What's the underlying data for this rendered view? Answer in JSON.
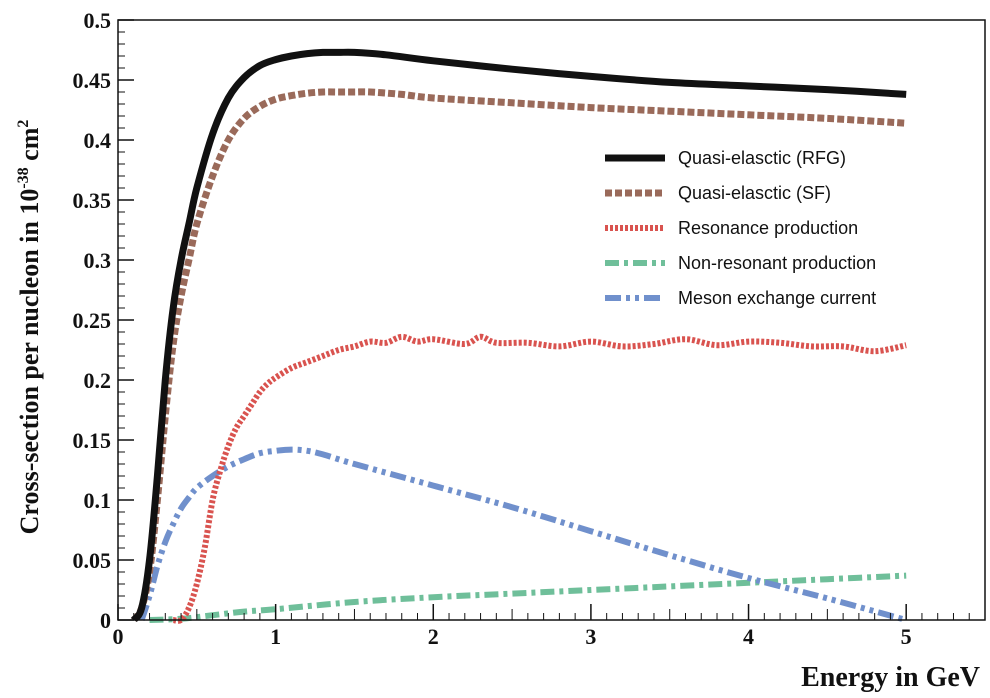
{
  "chart_data": {
    "type": "line",
    "xlabel": "Energy in GeV",
    "ylabel": "Cross-section per nucleon in 10",
    "ylabel_sup": "-38",
    "ylabel_unit": " cm",
    "ylabel_unit_sup": "2",
    "xlim": [
      0,
      5.5
    ],
    "ylim": [
      0,
      0.5
    ],
    "x_ticks": [
      0,
      1,
      2,
      3,
      4,
      5
    ],
    "y_ticks": [
      0,
      0.05,
      0.1,
      0.15,
      0.2,
      0.25,
      0.3,
      0.35,
      0.4,
      0.45,
      0.5
    ],
    "x_tick_labels": [
      "0",
      "1",
      "2",
      "3",
      "4",
      "5"
    ],
    "y_tick_labels": [
      "0",
      "0.05",
      "0.1",
      "0.15",
      "0.2",
      "0.25",
      "0.3",
      "0.35",
      "0.4",
      "0.45",
      "0.5"
    ],
    "grid": false,
    "legend_position": "right",
    "series": [
      {
        "name": "Quasi-elasctic (RFG)",
        "color": "#111111",
        "style": "solid",
        "x": [
          0.1,
          0.15,
          0.2,
          0.25,
          0.3,
          0.35,
          0.4,
          0.45,
          0.5,
          0.6,
          0.7,
          0.8,
          0.9,
          1.0,
          1.1,
          1.2,
          1.3,
          1.4,
          1.5,
          1.7,
          2.0,
          2.5,
          3.0,
          3.5,
          4.0,
          4.5,
          5.0
        ],
        "y": [
          0.0,
          0.01,
          0.05,
          0.12,
          0.2,
          0.26,
          0.3,
          0.33,
          0.36,
          0.405,
          0.435,
          0.452,
          0.462,
          0.467,
          0.47,
          0.472,
          0.473,
          0.473,
          0.473,
          0.471,
          0.466,
          0.459,
          0.453,
          0.448,
          0.445,
          0.442,
          0.438
        ]
      },
      {
        "name": "Quasi-elasctic (SF)",
        "color": "#9a6a5a",
        "style": "dashed",
        "x": [
          0.1,
          0.15,
          0.2,
          0.25,
          0.3,
          0.35,
          0.4,
          0.45,
          0.5,
          0.6,
          0.7,
          0.8,
          0.9,
          1.0,
          1.1,
          1.2,
          1.3,
          1.4,
          1.5,
          1.6,
          1.8,
          2.0,
          2.5,
          3.0,
          3.5,
          4.0,
          4.5,
          5.0
        ],
        "y": [
          0.0,
          0.01,
          0.04,
          0.1,
          0.17,
          0.23,
          0.27,
          0.3,
          0.33,
          0.37,
          0.4,
          0.418,
          0.428,
          0.434,
          0.437,
          0.439,
          0.44,
          0.44,
          0.44,
          0.44,
          0.438,
          0.435,
          0.431,
          0.427,
          0.424,
          0.421,
          0.418,
          0.414
        ]
      },
      {
        "name": "Resonance production",
        "color": "#d9534f",
        "style": "dotted",
        "x": [
          0.35,
          0.4,
          0.45,
          0.5,
          0.55,
          0.6,
          0.65,
          0.7,
          0.75,
          0.8,
          0.85,
          0.9,
          0.95,
          1.0,
          1.1,
          1.2,
          1.3,
          1.4,
          1.5,
          1.6,
          1.7,
          1.8,
          1.9,
          2.0,
          2.2,
          2.3,
          2.4,
          2.6,
          2.8,
          3.0,
          3.2,
          3.4,
          3.6,
          3.8,
          4.0,
          4.2,
          4.4,
          4.6,
          4.8,
          5.0
        ],
        "y": [
          0.0,
          0.0,
          0.01,
          0.03,
          0.06,
          0.1,
          0.125,
          0.145,
          0.16,
          0.17,
          0.18,
          0.19,
          0.197,
          0.202,
          0.21,
          0.215,
          0.22,
          0.225,
          0.228,
          0.232,
          0.231,
          0.236,
          0.232,
          0.234,
          0.23,
          0.236,
          0.231,
          0.231,
          0.228,
          0.232,
          0.228,
          0.23,
          0.234,
          0.229,
          0.232,
          0.231,
          0.228,
          0.228,
          0.224,
          0.229
        ]
      },
      {
        "name": "Non-resonant production",
        "color": "#6fbf9a",
        "style": "dash-dot",
        "x": [
          0.2,
          0.4,
          0.6,
          0.8,
          1.0,
          1.5,
          2.0,
          2.5,
          3.0,
          3.5,
          4.0,
          4.5,
          5.0
        ],
        "y": [
          0.0,
          0.001,
          0.004,
          0.007,
          0.009,
          0.015,
          0.019,
          0.022,
          0.025,
          0.028,
          0.031,
          0.034,
          0.037
        ]
      },
      {
        "name": "Meson exchange current",
        "color": "#7090cc",
        "style": "dash-dot-dot",
        "x": [
          0.15,
          0.2,
          0.25,
          0.3,
          0.35,
          0.4,
          0.45,
          0.5,
          0.6,
          0.7,
          0.8,
          0.9,
          1.0,
          1.1,
          1.2,
          1.3,
          1.5,
          2.0,
          2.5,
          3.0,
          3.5,
          4.0,
          4.5,
          5.0
        ],
        "y": [
          0.0,
          0.02,
          0.045,
          0.065,
          0.08,
          0.093,
          0.102,
          0.11,
          0.12,
          0.128,
          0.134,
          0.139,
          0.141,
          0.142,
          0.141,
          0.138,
          0.13,
          0.112,
          0.094,
          0.074,
          0.054,
          0.035,
          0.018,
          0.0
        ]
      }
    ]
  }
}
